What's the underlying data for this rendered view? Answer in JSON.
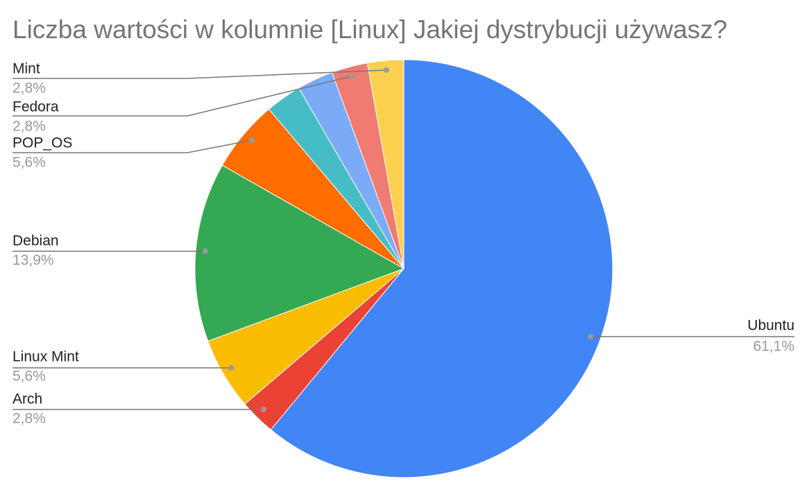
{
  "chart_data": {
    "type": "pie",
    "title": "Liczba wartości w kolumnie [Linux] Jakiej dystrybucji używasz?",
    "categories": [
      "Ubuntu",
      "Arch",
      "Linux Mint",
      "Debian",
      "POP_OS",
      null,
      null,
      "Fedora",
      "Mint"
    ],
    "values": [
      61.1,
      2.8,
      5.6,
      13.9,
      5.6,
      2.8,
      2.8,
      2.8,
      2.8
    ],
    "value_labels": [
      "61,1%",
      "2,8%",
      "5,6%",
      "13,9%",
      "5,6%",
      null,
      null,
      "2,8%",
      "2,8%"
    ],
    "colors": [
      "#4285f4",
      "#ea4335",
      "#fbbc04",
      "#34a853",
      "#ff6d01",
      "#46bdc6",
      "#7baaf7",
      "#f07b72",
      "#fcd04f"
    ]
  }
}
